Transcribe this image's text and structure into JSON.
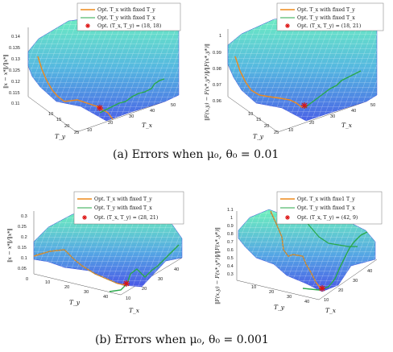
{
  "chart_data": [
    {
      "type": "surface3d",
      "id": "a-left",
      "zlabel": "‖x − x*‖/‖x*‖",
      "xlabel": "T_y",
      "ylabel": "T_x",
      "z_ticks": [
        "0.14",
        "0.135",
        "0.13",
        "0.125",
        "0.12",
        "0.115",
        "0.11"
      ],
      "ty_ticks": [
        "10",
        "15",
        "20",
        "25"
      ],
      "tx_ticks": [
        "10",
        "20",
        "30",
        "40",
        "50"
      ],
      "legend": [
        "Opt. T_x with fixed T_y",
        "Opt. T_y with fixed T_x",
        "Opt. (T_x, T_y) = (18, 18)"
      ],
      "optimum": [
        18,
        18
      ]
    },
    {
      "type": "surface3d",
      "id": "a-right",
      "zlabel": "‖F(x,y) − F(x*,y*)‖/‖F(x*,y*)‖",
      "xlabel": "T_y",
      "ylabel": "T_x",
      "z_ticks": [
        "1",
        "0.99",
        "0.98",
        "0.97",
        "0.96"
      ],
      "ty_ticks": [
        "10",
        "15",
        "20",
        "25"
      ],
      "tx_ticks": [
        "10",
        "20",
        "30",
        "40",
        "50"
      ],
      "legend": [
        "Opt. T_x with fixed T_y",
        "Opt. T_y with fixed T_x",
        "Opt. (T_x, T_y) = (18, 21)"
      ],
      "optimum": [
        18,
        21
      ]
    },
    {
      "type": "surface3d",
      "id": "b-left",
      "zlabel": "‖x − x*‖/‖x*‖",
      "xlabel": "T_y",
      "ylabel": "T_x",
      "z_ticks": [
        "0.3",
        "0.25",
        "0.2",
        "0.15",
        "0.1",
        "0.05",
        "0"
      ],
      "ty_ticks": [
        "10",
        "20",
        "30",
        "40"
      ],
      "tx_ticks": [
        "10",
        "20",
        "30",
        "40"
      ],
      "legend": [
        "Opt. T_x with fixed T_y",
        "Opt. T_y with fixed T_x",
        "Opt. (T_x, T_y) = (28, 21)"
      ],
      "optimum": [
        28,
        21
      ]
    },
    {
      "type": "surface3d",
      "id": "b-right",
      "zlabel": "‖F(x,y) − F(x*,y*)‖/‖F(x*,y*)‖",
      "xlabel": "T_y",
      "ylabel": "T_x",
      "z_ticks": [
        "1.1",
        "1",
        "0.9",
        "0.8",
        "0.7",
        "0.6",
        "0.5",
        "0.4",
        "0.3"
      ],
      "ty_ticks": [
        "10",
        "20",
        "30",
        "40"
      ],
      "tx_ticks": [
        "10",
        "20",
        "30",
        "40"
      ],
      "legend": [
        "Opt. T_x with fixe1 T_y",
        "Opt. T_y with fixed T_x",
        "Opt. (T_x, T_y) = (42, 9)"
      ],
      "optimum": [
        42,
        9
      ]
    }
  ],
  "captions": {
    "a": "(a)  Errors when μ₀, θ₀ = 0.01",
    "b": "(b)  Errors when μ₀, θ₀ = 0.001"
  },
  "colors": {
    "surface_top": "#5ee0b8",
    "surface_bottom": "#4a6ee8",
    "grid": "#ffffff",
    "line_tx": "#ee8a1c",
    "line_ty": "#2aa84a",
    "marker": "#dd1111"
  }
}
